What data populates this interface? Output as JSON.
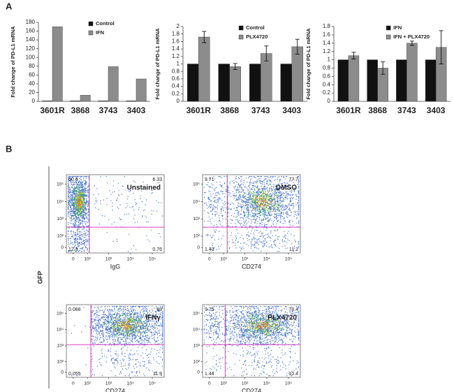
{
  "panels": [
    "A",
    "B"
  ],
  "shared_ylabel": "GFP",
  "chart_data": [
    {
      "type": "bar",
      "ylabel": "Fold change of PD-L1 mRNA",
      "categories": [
        "3601R",
        "3868",
        "3743",
        "3403"
      ],
      "series": [
        {
          "name": "Control",
          "color": "#111111",
          "values": [
            1,
            1,
            1,
            1
          ]
        },
        {
          "name": "IFN",
          "color": "#8c8c8c",
          "values": [
            170,
            14,
            79,
            51
          ]
        }
      ],
      "ylim": [
        0,
        180
      ],
      "yticks": [
        0,
        20,
        40,
        60,
        80,
        100,
        120,
        140,
        160,
        180
      ]
    },
    {
      "type": "bar",
      "ylabel": "Fold change of PD-L1 mRNA",
      "categories": [
        "3601R",
        "3868",
        "3743",
        "3403"
      ],
      "series": [
        {
          "name": "Control",
          "color": "#111111",
          "values": [
            1,
            1,
            1,
            1
          ]
        },
        {
          "name": "PLX4720",
          "color": "#8c8c8c",
          "values": [
            1.72,
            0.93,
            1.28,
            1.46
          ],
          "errors": [
            0.15,
            0.08,
            0.2,
            0.2
          ]
        }
      ],
      "ylim": [
        0,
        2
      ],
      "yticks": [
        0,
        0.2,
        0.4,
        0.6,
        0.8,
        1,
        1.2,
        1.4,
        1.6,
        1.8,
        2
      ]
    },
    {
      "type": "bar",
      "ylabel": "Fold change of PD-L1 mRNA",
      "categories": [
        "3601R",
        "3868",
        "3743",
        "3403"
      ],
      "series": [
        {
          "name": "IFN",
          "color": "#111111",
          "values": [
            1,
            1,
            1,
            1
          ]
        },
        {
          "name": "IFN + PLX4720",
          "color": "#8c8c8c",
          "values": [
            1.1,
            0.8,
            1.4,
            1.3
          ],
          "errors": [
            0.08,
            0.15,
            0.05,
            0.4
          ]
        }
      ],
      "ylim": [
        0,
        1.8
      ],
      "yticks": [
        0,
        0.2,
        0.4,
        0.6,
        0.8,
        1,
        1.2,
        1.4,
        1.6,
        1.8
      ]
    },
    {
      "type": "flow",
      "title": "Unstained",
      "xlabel": "IgG",
      "xscale": "asinh",
      "yscale": "asinh",
      "xlim": [
        -37,
        350000
      ],
      "ylim": [
        -37,
        350000
      ],
      "xticks": [
        0,
        {
          "value": 100,
          "label": "10²"
        },
        {
          "value": 1000,
          "label": "10³"
        },
        {
          "value": 10000,
          "label": "10⁴"
        },
        {
          "value": 100000,
          "label": "10⁵"
        }
      ],
      "yticks": [
        0,
        {
          "value": 100,
          "label": "10²"
        },
        {
          "value": 1000,
          "label": "10³"
        },
        {
          "value": 10000,
          "label": "10⁴"
        },
        {
          "value": 100000,
          "label": "10⁵"
        }
      ],
      "quadrants": {
        "upper_left": 60.6,
        "upper_right": 6.33,
        "lower_left": 12.3,
        "lower_right": 0.76
      },
      "gates": {
        "x": 125,
        "y": 340
      },
      "gate_color": "#e040c0",
      "color": "#2f5fc8"
    },
    {
      "type": "flow",
      "title": "DMSO",
      "xlabel": "CD274",
      "xscale": "asinh",
      "yscale": "asinh",
      "xlim": [
        -37,
        350000
      ],
      "ylim": [
        -37,
        350000
      ],
      "xticks": [
        0,
        {
          "value": 100,
          "label": "10²"
        },
        {
          "value": 1000,
          "label": "10³"
        },
        {
          "value": 10000,
          "label": "10⁴"
        },
        {
          "value": 100000,
          "label": "10⁵"
        }
      ],
      "yticks": [
        0,
        {
          "value": 100,
          "label": "10²"
        },
        {
          "value": 1000,
          "label": "10³"
        },
        {
          "value": 10000,
          "label": "10⁴"
        },
        {
          "value": 100000,
          "label": "10⁵"
        }
      ],
      "quadrants": {
        "upper_left": 9.71,
        "upper_right": 77.7,
        "lower_left": 1.43,
        "lower_right": 11.2
      },
      "gates": {
        "x": 150,
        "y": 340
      },
      "gate_color": "#e040c0",
      "color": "#2f5fc8"
    },
    {
      "type": "flow",
      "title": "IFNγ",
      "xlabel": "CD274",
      "xscale": "asinh",
      "yscale": "asinh",
      "xlim": [
        -37,
        350000
      ],
      "ylim": [
        -37,
        350000
      ],
      "xticks": [
        0,
        {
          "value": 100,
          "label": "10²"
        },
        {
          "value": 1000,
          "label": "10³"
        },
        {
          "value": 10000,
          "label": "10⁴"
        },
        {
          "value": 100000,
          "label": "10⁵"
        }
      ],
      "yticks": [
        0,
        {
          "value": 100,
          "label": "10²"
        },
        {
          "value": 1000,
          "label": "10³"
        },
        {
          "value": 10000,
          "label": "10⁴"
        },
        {
          "value": 100000,
          "label": "10⁵"
        }
      ],
      "quadrants": {
        "upper_left": 0.088,
        "upper_right": 88,
        "lower_left": 0.055,
        "lower_right": 11.9
      },
      "gates": {
        "x": 148,
        "y": 1180
      },
      "gate_color": "#e040c0",
      "color": "#2f5fc8"
    },
    {
      "type": "flow",
      "title": "PLX4720",
      "xlabel": "CD274",
      "xscale": "asinh",
      "yscale": "asinh",
      "xlim": [
        -37,
        350000
      ],
      "ylim": [
        -37,
        350000
      ],
      "xticks": [
        0,
        {
          "value": 100,
          "label": "10²"
        },
        {
          "value": 1000,
          "label": "10³"
        },
        {
          "value": 10000,
          "label": "10⁴"
        },
        {
          "value": 100000,
          "label": "10⁵"
        }
      ],
      "yticks": [
        0,
        {
          "value": 100,
          "label": "10²"
        },
        {
          "value": 1000,
          "label": "10³"
        },
        {
          "value": 10000,
          "label": "10⁴"
        },
        {
          "value": 100000,
          "label": "10⁵"
        }
      ],
      "quadrants": {
        "upper_left": 9.75,
        "upper_right": 78.4,
        "lower_left": 1.44,
        "lower_right": 10.4
      },
      "gates": {
        "x": 120,
        "y": 1180
      },
      "gate_color": "#e040c0",
      "color": "#2f5fc8"
    }
  ]
}
